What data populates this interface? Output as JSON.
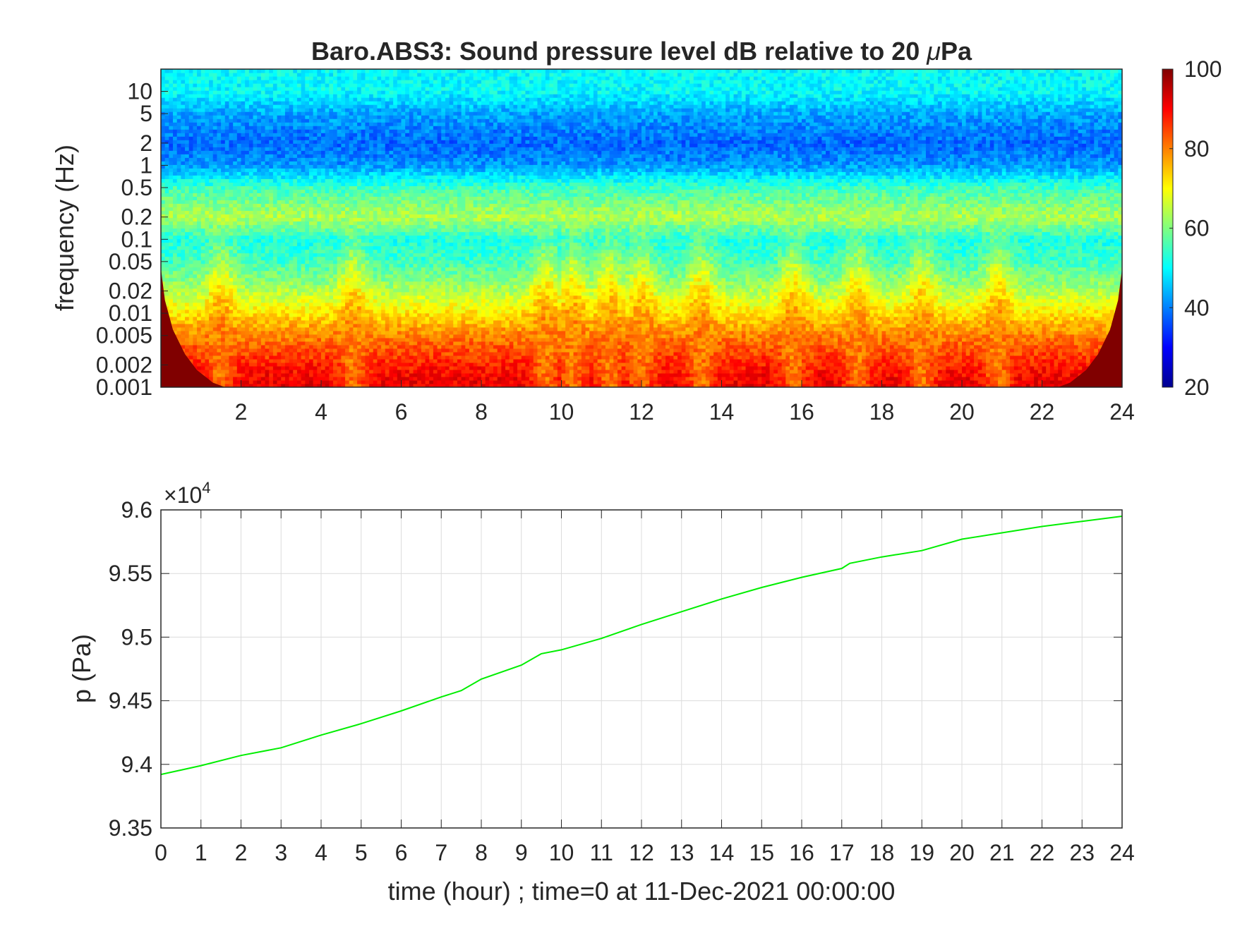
{
  "chart_data": [
    {
      "type": "heatmap",
      "title": "Baro.ABS3: Sound pressure level dB relative to 20 μPa",
      "title_prefix": "Baro.ABS3: Sound pressure level dB relative to 20 ",
      "title_mu": "μ",
      "title_suffix": "Pa",
      "ylabel": "frequency (Hz)",
      "xlabel": "",
      "y_scale": "log",
      "xlim": [
        0,
        24
      ],
      "ylim": [
        0.001,
        20
      ],
      "x_ticks": [
        2,
        4,
        6,
        8,
        10,
        12,
        14,
        16,
        18,
        20,
        22,
        24
      ],
      "y_ticks": [
        0.001,
        0.002,
        0.005,
        0.01,
        0.02,
        0.05,
        0.1,
        0.2,
        0.5,
        1,
        2,
        5,
        10
      ],
      "y_tick_labels": [
        "0.001",
        "0.002",
        "0.005",
        "0.01",
        "0.02",
        "0.05",
        "0.1",
        "0.2",
        "0.5",
        "1",
        "2",
        "5",
        "10"
      ],
      "colormap": "jet",
      "colorbar": {
        "range": [
          20,
          100
        ],
        "ticks": [
          20,
          40,
          60,
          80,
          100
        ],
        "tick_labels": [
          "20",
          "40",
          "60",
          "80",
          "100"
        ]
      },
      "band_levels_db": [
        {
          "freq_hz": 20,
          "db": 50
        },
        {
          "freq_hz": 10,
          "db": 50
        },
        {
          "freq_hz": 5,
          "db": 43
        },
        {
          "freq_hz": 2,
          "db": 38
        },
        {
          "freq_hz": 1,
          "db": 42
        },
        {
          "freq_hz": 0.5,
          "db": 55
        },
        {
          "freq_hz": 0.2,
          "db": 64
        },
        {
          "freq_hz": 0.1,
          "db": 52
        },
        {
          "freq_hz": 0.05,
          "db": 55
        },
        {
          "freq_hz": 0.02,
          "db": 64
        },
        {
          "freq_hz": 0.01,
          "db": 72
        },
        {
          "freq_hz": 0.005,
          "db": 80
        },
        {
          "freq_hz": 0.002,
          "db": 88
        },
        {
          "freq_hz": 0.001,
          "db": 92
        }
      ],
      "burst_times_hour": [
        1.5,
        4.8,
        9.6,
        10.3,
        11.2,
        12.0,
        13.5,
        15.8,
        17.4,
        19.0,
        20.9
      ],
      "burst_peak_db": 80
    },
    {
      "type": "line",
      "title": "",
      "xlabel": "time (hour) ; time=0 at 11-Dec-2021 00:00:00",
      "ylabel": "p (Pa)",
      "y_exponent_label": "×10",
      "y_exponent_power": "4",
      "y_multiplier": 10000,
      "xlim": [
        0,
        24
      ],
      "ylim": [
        9.35,
        9.6
      ],
      "x_ticks": [
        0,
        1,
        2,
        3,
        4,
        5,
        6,
        7,
        8,
        9,
        10,
        11,
        12,
        13,
        14,
        15,
        16,
        17,
        18,
        19,
        20,
        21,
        22,
        23,
        24
      ],
      "y_ticks": [
        9.35,
        9.4,
        9.45,
        9.5,
        9.55,
        9.6
      ],
      "y_tick_labels": [
        "9.35",
        "9.4",
        "9.45",
        "9.5",
        "9.55",
        "9.6"
      ],
      "grid": true,
      "series": [
        {
          "color": "#00ee00",
          "x": [
            0,
            1,
            2,
            3,
            4,
            5,
            6,
            7,
            7.5,
            8,
            9,
            9.5,
            10,
            11,
            12,
            13,
            14,
            15,
            16,
            17,
            17.2,
            18,
            19,
            20,
            21,
            22,
            23,
            24
          ],
          "y": [
            9.392,
            9.399,
            9.407,
            9.413,
            9.423,
            9.432,
            9.442,
            9.453,
            9.458,
            9.467,
            9.478,
            9.487,
            9.49,
            9.499,
            9.51,
            9.52,
            9.53,
            9.539,
            9.547,
            9.554,
            9.558,
            9.563,
            9.568,
            9.577,
            9.582,
            9.587,
            9.591,
            9.595
          ]
        }
      ]
    }
  ]
}
